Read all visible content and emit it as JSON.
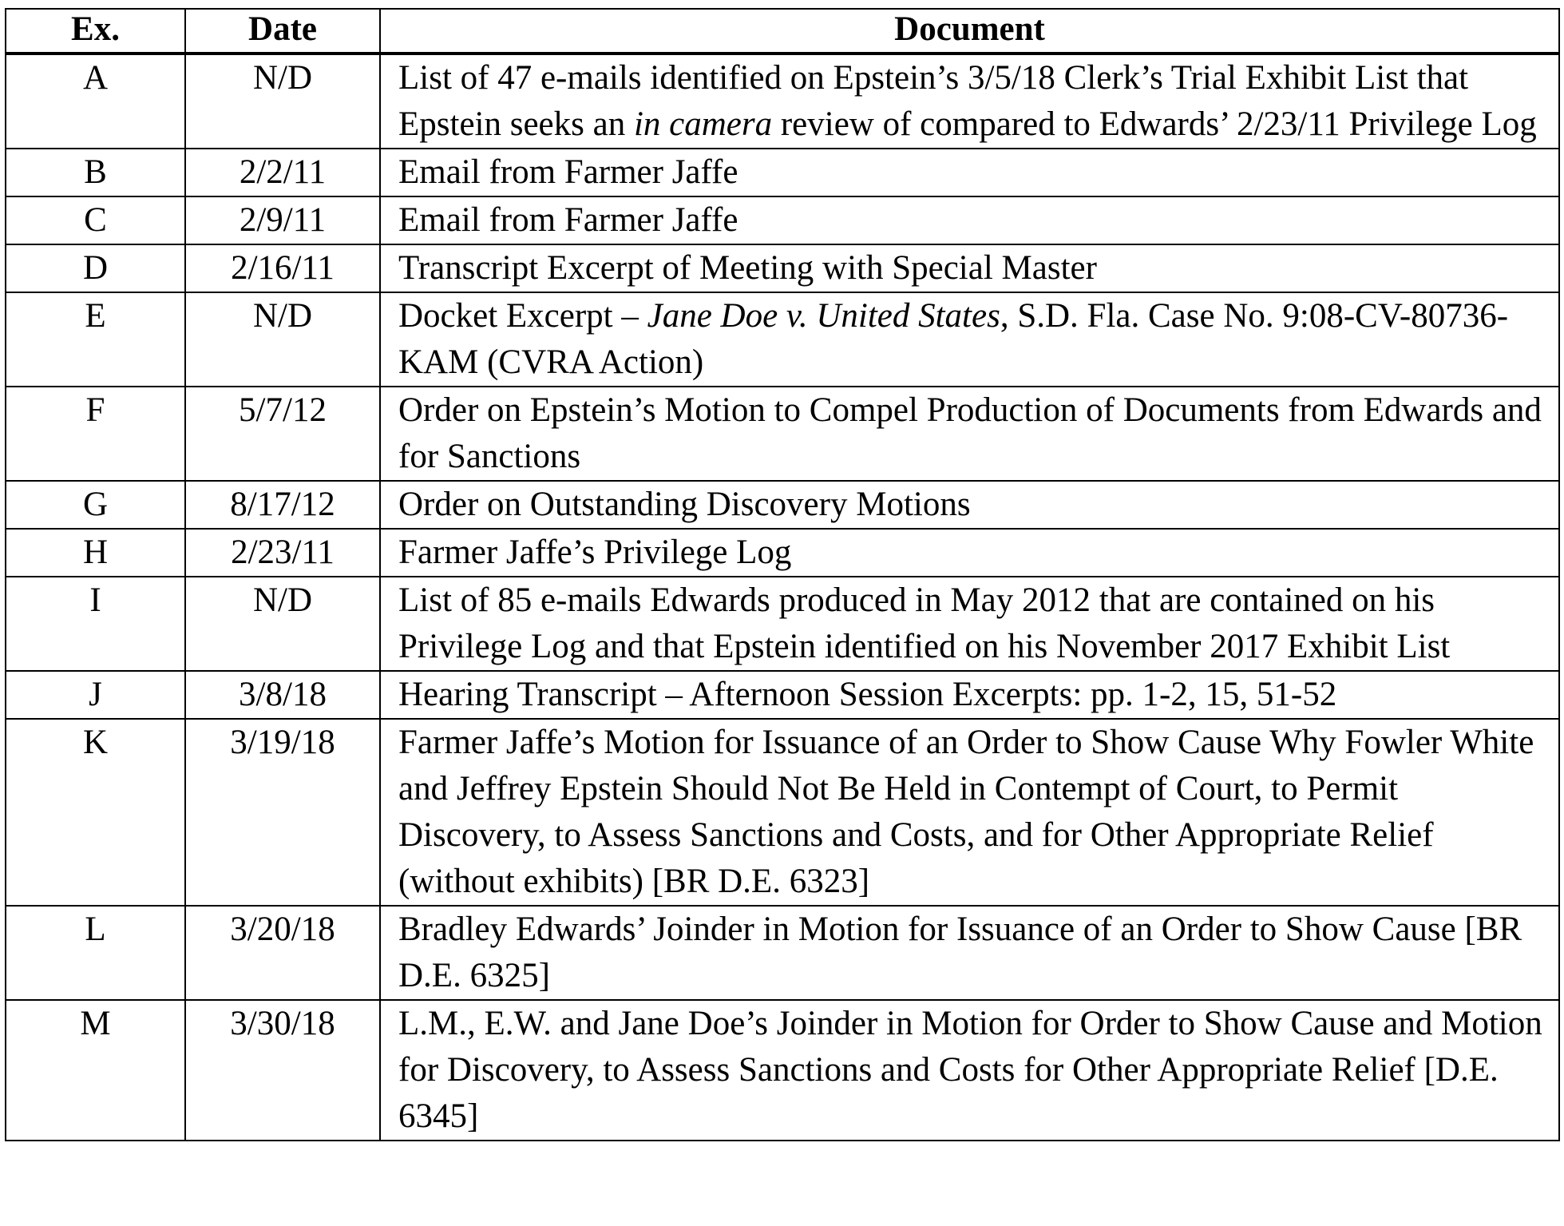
{
  "headers": {
    "ex": "Ex.",
    "date": "Date",
    "document": "Document"
  },
  "rows": [
    {
      "ex": "A",
      "date": "N/D",
      "document": [
        {
          "text": "List of 47 e-mails identified on Epstein’s 3/5/18 Clerk’s Trial Exhibit List that Epstein seeks an "
        },
        {
          "text": "in camera",
          "italic": true
        },
        {
          "text": " review of compared to Edwards’ 2/23/11 Privilege Log"
        }
      ]
    },
    {
      "ex": "B",
      "date": "2/2/11",
      "document": [
        {
          "text": "Email from Farmer Jaffe"
        }
      ]
    },
    {
      "ex": "C",
      "date": "2/9/11",
      "document": [
        {
          "text": "Email from Farmer Jaffe"
        }
      ]
    },
    {
      "ex": "D",
      "date": "2/16/11",
      "document": [
        {
          "text": "Transcript Excerpt of Meeting with Special Master"
        }
      ]
    },
    {
      "ex": "E",
      "date": "N/D",
      "document": [
        {
          "text": "Docket Excerpt – "
        },
        {
          "text": "Jane Doe v. United States",
          "italic": true
        },
        {
          "text": ", S.D. Fla. Case No. 9:08-CV-80736-KAM (CVRA Action)"
        }
      ]
    },
    {
      "ex": "F",
      "date": "5/7/12",
      "document": [
        {
          "text": "Order on Epstein’s Motion to Compel Production of Documents from Edwards and for Sanctions"
        }
      ]
    },
    {
      "ex": "G",
      "date": "8/17/12",
      "document": [
        {
          "text": "Order on Outstanding Discovery Motions"
        }
      ]
    },
    {
      "ex": "H",
      "date": "2/23/11",
      "document": [
        {
          "text": "Farmer Jaffe’s Privilege Log"
        }
      ]
    },
    {
      "ex": "I",
      "date": "N/D",
      "document": [
        {
          "text": "List of 85 e-mails Edwards produced in May 2012 that are contained on his Privilege Log and that Epstein identified on his November 2017 Exhibit List"
        }
      ]
    },
    {
      "ex": "J",
      "date": "3/8/18",
      "document": [
        {
          "text": "Hearing Transcript – Afternoon Session Excerpts:  pp. 1-2, 15, 51-52"
        }
      ]
    },
    {
      "ex": "K",
      "date": "3/19/18",
      "document": [
        {
          "text": "Farmer Jaffe’s Motion for Issuance of an Order to Show Cause Why Fowler White and Jeffrey Epstein Should Not Be Held in Contempt of Court, to Permit Discovery, to Assess Sanctions and Costs, and for Other Appropriate Relief (without exhibits) [BR D.E. 6323]"
        }
      ]
    },
    {
      "ex": "L",
      "date": "3/20/18",
      "document": [
        {
          "text": "Bradley Edwards’ Joinder in Motion for Issuance of an Order to Show Cause [BR D.E. 6325]"
        }
      ]
    },
    {
      "ex": "M",
      "date": "3/30/18",
      "document": [
        {
          "text": "L.M., E.W. and Jane Doe’s Joinder in Motion for Order to Show Cause and Motion for Discovery, to Assess Sanctions and Costs for Other Appropriate Relief [D.E. 6345]"
        }
      ]
    }
  ]
}
